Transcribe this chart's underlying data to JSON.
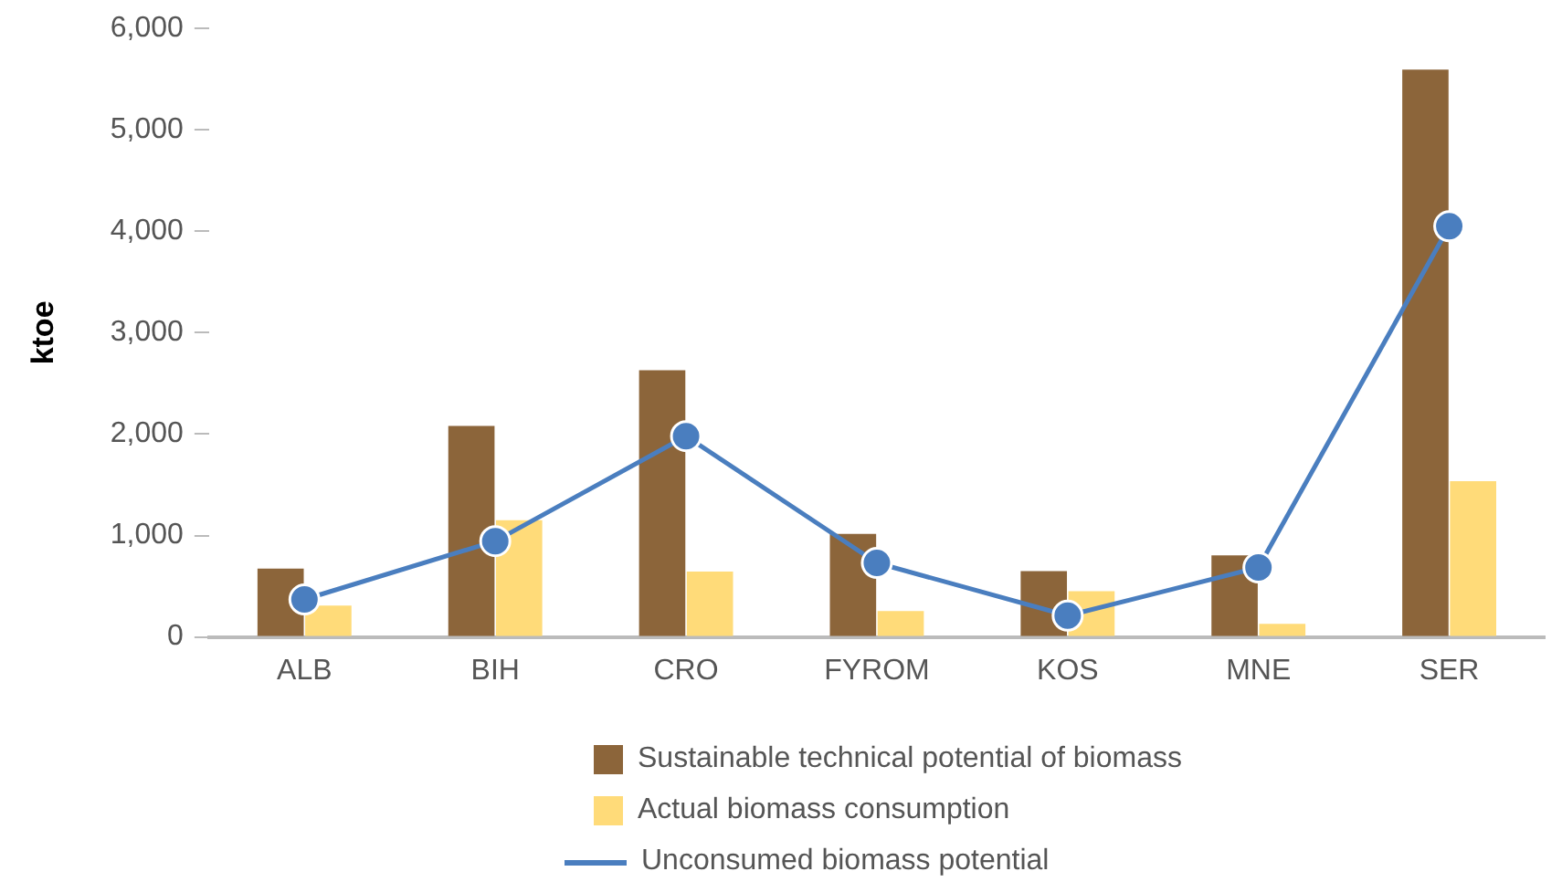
{
  "chart_data": {
    "type": "bar",
    "ylabel": "ktoe",
    "categories": [
      "ALB",
      "BIH",
      "CRO",
      "FYROM",
      "KOS",
      "MNE",
      "SER"
    ],
    "series": [
      {
        "name": "Sustainable technical potential of biomass",
        "color": "#8c653a",
        "values": [
          675,
          2080,
          2630,
          1015,
          650,
          805,
          5595
        ]
      },
      {
        "name": "Actual biomass consumption",
        "color": "#ffdb79",
        "values": [
          310,
          1150,
          645,
          255,
          450,
          130,
          1535
        ]
      },
      {
        "name": "Unconsumed biomass potential",
        "type": "line",
        "color": "#4a7ebf",
        "marker": "circle",
        "values": [
          370,
          945,
          1980,
          730,
          210,
          685,
          4050
        ]
      }
    ],
    "ylim": [
      0,
      6000
    ],
    "yticks": [
      {
        "value": 0,
        "label": "0"
      },
      {
        "value": 1000,
        "label": "1,000"
      },
      {
        "value": 2000,
        "label": "2,000"
      },
      {
        "value": 3000,
        "label": "3,000"
      },
      {
        "value": 4000,
        "label": "4,000"
      },
      {
        "value": 5000,
        "label": "5,000"
      },
      {
        "value": 6000,
        "label": "6,000"
      }
    ],
    "grid": false,
    "legend": "bottom"
  }
}
